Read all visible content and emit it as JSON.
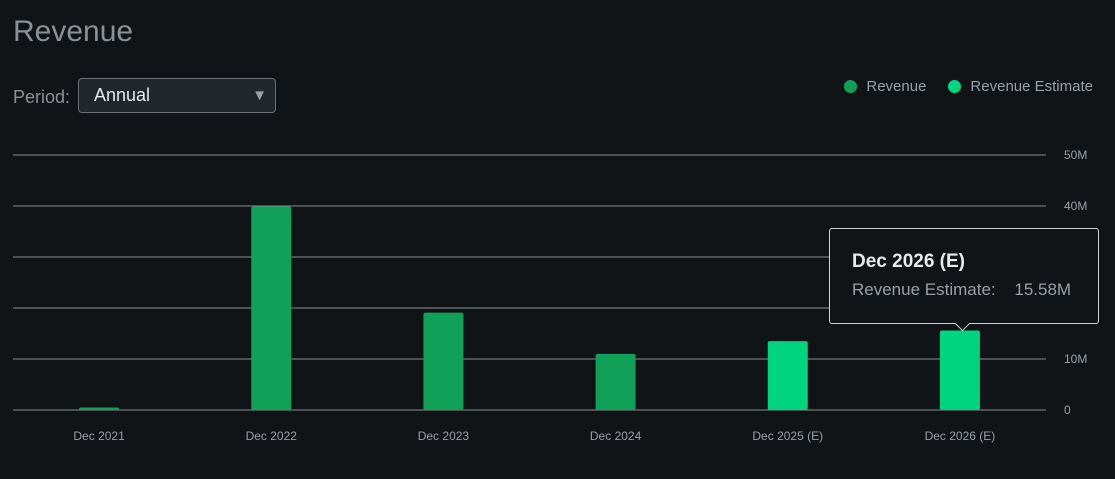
{
  "title": "Revenue",
  "period": {
    "label": "Period:",
    "selected": "Annual"
  },
  "legend": [
    {
      "label": "Revenue",
      "color": "#11a057"
    },
    {
      "label": "Revenue Estimate",
      "color": "#00d47f"
    }
  ],
  "tooltip": {
    "title": "Dec 2026 (E)",
    "series": "Revenue Estimate:",
    "value": "15.58M"
  },
  "chart_data": {
    "type": "bar",
    "categories": [
      "Dec 2021",
      "Dec 2022",
      "Dec 2023",
      "Dec 2024",
      "Dec 2025 (E)",
      "Dec 2026 (E)"
    ],
    "values": [
      0.5,
      39.9,
      19.1,
      11.0,
      13.5,
      15.58
    ],
    "estimate": [
      false,
      false,
      false,
      false,
      true,
      true
    ],
    "colors": {
      "actual": "#11a057",
      "estimate": "#00d47f"
    },
    "y_ticks": [
      "0",
      "10M",
      "",
      "",
      "40M",
      "50M"
    ],
    "ylim": [
      0,
      50
    ],
    "grid": true,
    "legend_position": "top-right"
  }
}
